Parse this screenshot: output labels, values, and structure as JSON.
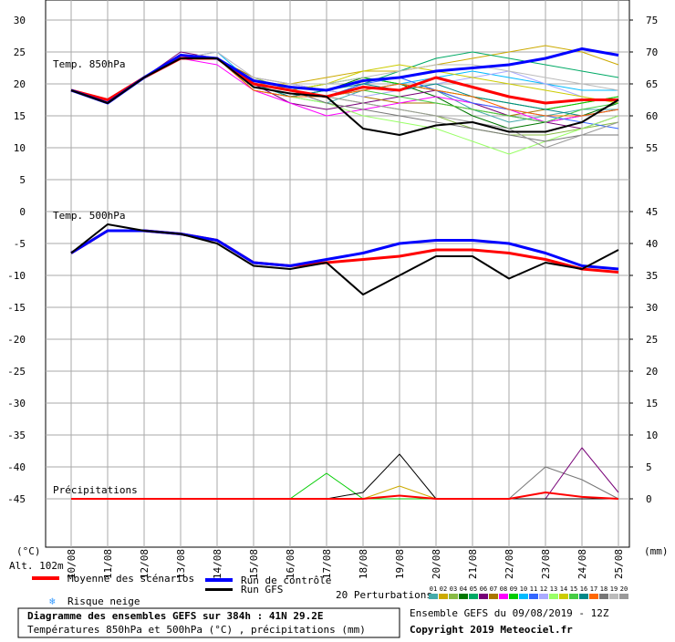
{
  "chart_data": {
    "type": "ensemble",
    "categories": [
      "10/08",
      "11/08",
      "12/08",
      "13/08",
      "14/08",
      "15/08",
      "16/08",
      "17/08",
      "18/08",
      "19/08",
      "20/08",
      "21/08",
      "22/08",
      "23/08",
      "24/08",
      "25/08"
    ],
    "grid": true,
    "altitude": "Alt. 102m",
    "left_unit": "(°C)",
    "right_unit": "(mm)",
    "panels": [
      {
        "title": "Temp. 850hPa",
        "ylim": [
          0,
          30
        ],
        "yticks": [
          5,
          10,
          15,
          20,
          25,
          30
        ],
        "y2lim": [
          50,
          75
        ],
        "y2ticks": [
          55,
          60,
          65,
          70,
          75
        ],
        "series": [
          {
            "name": "Moyenne des scénarios",
            "color": "#ff0000",
            "values": [
              19,
              17.5,
              21,
              24,
              24,
              20,
              19,
              18,
              19.5,
              19,
              21,
              19.5,
              18,
              17,
              17.5,
              17.5
            ]
          },
          {
            "name": "Run de contrôle",
            "color": "#0000ff",
            "values": [
              19,
              17,
              21,
              24.5,
              24,
              20.5,
              19.5,
              19,
              20.5,
              21,
              22,
              22.5,
              23,
              24,
              25.5,
              24.5
            ]
          },
          {
            "name": "Run GFS",
            "color": "#000000",
            "values": [
              19,
              17,
              21,
              24,
              24,
              19.5,
              18.5,
              18,
              13,
              12,
              13.5,
              14,
              12.5,
              12.5,
              14,
              17.5
            ]
          }
        ],
        "perturbations": [
          {
            "name": "01",
            "color": "#44aaaa",
            "values": [
              19,
              17,
              21,
              24,
              24,
              20,
              18,
              17,
              19,
              20,
              19,
              16,
              14,
              15,
              16,
              16
            ]
          },
          {
            "name": "02",
            "color": "#ccaa00",
            "values": [
              19,
              17,
              21,
              24,
              24,
              20,
              20,
              21,
              22,
              22,
              23,
              24,
              25,
              26,
              25,
              23
            ]
          },
          {
            "name": "03",
            "color": "#88bb44",
            "values": [
              19,
              17,
              21,
              24,
              24,
              21,
              19,
              18,
              17,
              16,
              15,
              13,
              12,
              12,
              13,
              14
            ]
          },
          {
            "name": "04",
            "color": "#007700",
            "values": [
              19,
              17,
              21,
              24,
              24,
              19,
              18,
              19,
              21,
              20,
              18,
              15,
              13,
              14,
              15,
              17
            ]
          },
          {
            "name": "05",
            "color": "#00aa66",
            "values": [
              19,
              17,
              21,
              24,
              24,
              20,
              19,
              18,
              20,
              22,
              24,
              25,
              24,
              23,
              22,
              21
            ]
          },
          {
            "name": "06",
            "color": "#770077",
            "values": [
              19,
              17,
              21,
              25,
              24,
              20,
              17,
              16,
              17,
              18,
              19,
              17,
              15,
              14,
              13,
              15
            ]
          },
          {
            "name": "07",
            "color": "#aa7700",
            "values": [
              19,
              17,
              21,
              24,
              24,
              21,
              20,
              19,
              18,
              17,
              17,
              16,
              15,
              16,
              17,
              18
            ]
          },
          {
            "name": "08",
            "color": "#ff00ff",
            "values": [
              19,
              17,
              21,
              24,
              23,
              19,
              17,
              15,
              16,
              17,
              18,
              17,
              16,
              14,
              15,
              16
            ]
          },
          {
            "name": "09",
            "color": "#00cc00",
            "values": [
              19,
              17,
              21,
              24,
              24,
              20,
              19,
              20,
              21,
              20,
              19,
              18,
              17,
              16,
              17,
              18
            ]
          },
          {
            "name": "10",
            "color": "#00bbff",
            "values": [
              19,
              17,
              21,
              24,
              25,
              20,
              19,
              18,
              19,
              20,
              21,
              22,
              21,
              20,
              19,
              19
            ]
          },
          {
            "name": "11",
            "color": "#3366ff",
            "values": [
              19,
              17,
              21,
              24,
              24,
              20,
              18,
              18,
              20,
              21,
              19,
              17,
              16,
              15,
              14,
              13
            ]
          },
          {
            "name": "12",
            "color": "#aaaaff",
            "values": [
              19,
              17,
              21,
              24,
              25,
              21,
              20,
              19,
              18,
              19,
              20,
              21,
              22,
              20,
              18,
              17
            ]
          },
          {
            "name": "13",
            "color": "#99ff66",
            "values": [
              19,
              17,
              21,
              24,
              24,
              20,
              18,
              17,
              15,
              14,
              13,
              11,
              9,
              11,
              13,
              15
            ]
          },
          {
            "name": "14",
            "color": "#cccc00",
            "values": [
              19,
              17,
              21,
              24,
              24,
              20,
              19,
              20,
              22,
              23,
              22,
              21,
              20,
              19,
              18,
              17
            ]
          },
          {
            "name": "15",
            "color": "#44cc44",
            "values": [
              19,
              17,
              21,
              24,
              24,
              20,
              19,
              18,
              19,
              18,
              17,
              16,
              15,
              14,
              16,
              17
            ]
          },
          {
            "name": "16",
            "color": "#008888",
            "values": [
              19,
              17,
              21,
              24,
              24,
              20,
              18,
              19,
              20,
              19,
              20,
              18,
              17,
              16,
              15,
              16
            ]
          },
          {
            "name": "17",
            "color": "#ff6600",
            "values": [
              19,
              17,
              21,
              24,
              24,
              19,
              18,
              18,
              19,
              20,
              19,
              18,
              16,
              15,
              15,
              16
            ]
          },
          {
            "name": "18",
            "color": "#777777",
            "values": [
              19,
              17,
              21,
              24,
              24,
              20,
              19,
              17,
              16,
              15,
              14,
              13,
              12,
              11,
              12,
              12
            ]
          },
          {
            "name": "19",
            "color": "#bbbbbb",
            "values": [
              19,
              17,
              21,
              24,
              25,
              21,
              20,
              20,
              21,
              22,
              23,
              23,
              22,
              21,
              20,
              19
            ]
          },
          {
            "name": "20",
            "color": "#999999",
            "values": [
              19,
              17,
              21,
              24,
              24,
              20,
              19,
              18,
              17,
              16,
              15,
              14,
              13,
              10,
              12,
              14
            ]
          }
        ]
      },
      {
        "title": "Temp. 500hPa",
        "ylim": [
          -45,
          0
        ],
        "yticks": [
          0,
          -5,
          -10,
          -15,
          -20,
          -25,
          -30,
          -35,
          -40,
          -45
        ],
        "y2lim": [
          0,
          45
        ],
        "y2ticks": [
          0,
          5,
          10,
          15,
          20,
          25,
          30,
          35,
          40,
          45
        ],
        "series": [
          {
            "color": "#ff0000",
            "values": [
              -6.5,
              -3,
              -3,
              -3.5,
              -4.5,
              -8,
              -8.5,
              -8,
              -7.5,
              -7,
              -6,
              -6,
              -6.5,
              -7.5,
              -9,
              -9.5
            ]
          },
          {
            "color": "#0000ff",
            "values": [
              -6.5,
              -3,
              -3,
              -3.5,
              -4.5,
              -8,
              -8.5,
              -7.5,
              -6.5,
              -5,
              -4.5,
              -4.5,
              -5,
              -6.5,
              -8.5,
              -9
            ]
          },
          {
            "color": "#000000",
            "values": [
              -6.5,
              -2,
              -3,
              -3.5,
              -5,
              -8.5,
              -9,
              -8,
              -13,
              -10,
              -7,
              -7,
              -10.5,
              -8,
              -9,
              -6
            ]
          }
        ],
        "precip_title": "Précipitations",
        "precip": [
          {
            "color": "#777777",
            "axis": "y2",
            "values": [
              0,
              0,
              0,
              0,
              0,
              0,
              0,
              0,
              0,
              0,
              0,
              0,
              0,
              5,
              3,
              0
            ]
          },
          {
            "color": "#770077",
            "axis": "y2",
            "values": [
              0,
              0,
              0,
              0,
              0,
              0,
              0,
              0,
              0,
              0,
              0,
              0,
              0,
              0,
              8,
              1
            ]
          },
          {
            "color": "#ccaa00",
            "axis": "y2",
            "values": [
              0,
              0,
              0,
              0,
              0,
              0,
              0,
              0,
              0,
              2,
              0,
              0,
              0,
              0,
              0,
              0
            ]
          },
          {
            "color": "#00cc00",
            "axis": "y2",
            "values": [
              0,
              0,
              0,
              0,
              0,
              0,
              0,
              4,
              0,
              0,
              0,
              0,
              0,
              0,
              0,
              0
            ]
          },
          {
            "color": "#000000",
            "axis": "y2",
            "values": [
              0,
              0,
              0,
              0,
              0,
              0,
              0,
              0,
              1,
              7,
              0,
              0,
              0,
              0,
              0,
              0
            ]
          },
          {
            "color": "#ff0000",
            "axis": "y2",
            "values": [
              0,
              0,
              0,
              0,
              0,
              0,
              0,
              0,
              0,
              0.5,
              0,
              0,
              0,
              1,
              0.3,
              0
            ]
          }
        ]
      }
    ],
    "snow_label": "Risque neige",
    "perturbations_label": "20 Perturbations",
    "run_info": "Ensemble GEFS du 09/08/2019 - 12Z",
    "title": "Diagramme des ensembles GEFS sur 384h : 41N 29.2E",
    "subtitle": "Températures 850hPa et 500hPa (°C) , précipitations (mm)",
    "copyright": "Copyright 2019 Meteociel.fr"
  }
}
